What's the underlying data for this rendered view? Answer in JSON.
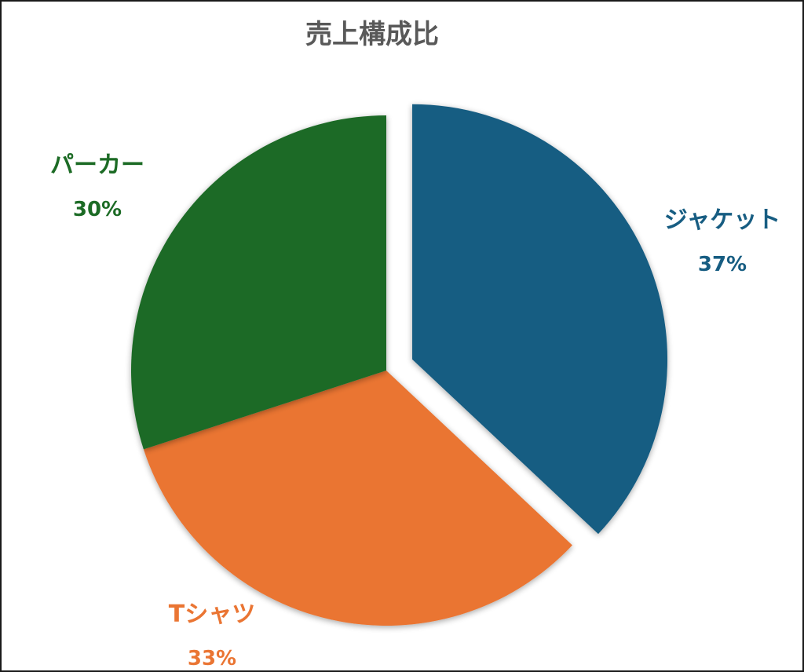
{
  "chart_data": {
    "type": "pie",
    "title": "売上構成比",
    "categories": [
      "ジャケット",
      "Tシャツ",
      "パーカー"
    ],
    "values": [
      37,
      33,
      30
    ],
    "value_labels": [
      "37%",
      "33%",
      "30%"
    ],
    "colors": [
      "#175d82",
      "#ea7533",
      "#1c6b25"
    ],
    "exploded": [
      "ジャケット"
    ],
    "legend": "none",
    "start_angle_deg": 0,
    "direction": "clockwise"
  }
}
